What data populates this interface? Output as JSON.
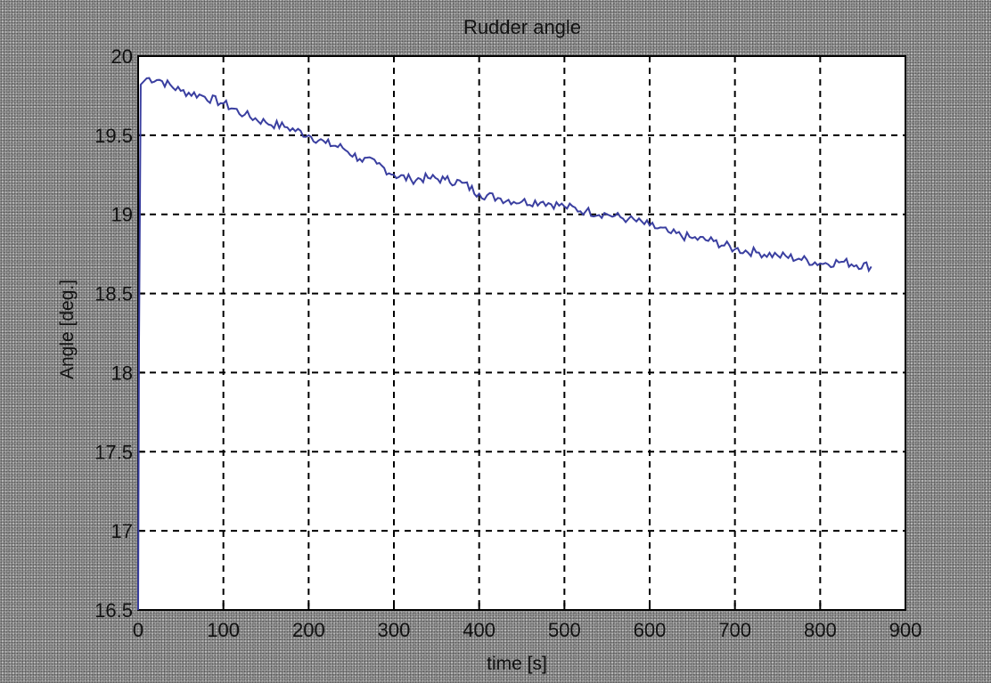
{
  "chart_data": {
    "type": "line",
    "title": "Rudder angle",
    "xlabel": "time [s]",
    "ylabel": "Angle [deg.]",
    "xlim": [
      0,
      900
    ],
    "ylim": [
      16.5,
      20
    ],
    "x_ticks": [
      "0",
      "100",
      "200",
      "300",
      "400",
      "500",
      "600",
      "700",
      "800",
      "900"
    ],
    "y_ticks": [
      "16.5",
      "17",
      "17.5",
      "18",
      "18.5",
      "19",
      "19.5",
      "20"
    ],
    "grid": true,
    "line_color": "#3a3fa0",
    "series": [
      {
        "x": [
          0,
          1,
          3,
          10,
          25,
          50,
          75,
          100,
          125,
          150,
          175,
          200,
          220,
          240,
          260,
          280,
          300,
          320,
          340,
          360,
          380,
          400,
          425,
          450,
          475,
          500,
          525,
          550,
          575,
          600,
          625,
          650,
          675,
          700,
          725,
          750,
          775,
          800,
          825,
          860
        ],
        "y": [
          16.5,
          18.2,
          19.82,
          19.86,
          19.85,
          19.78,
          19.75,
          19.7,
          19.63,
          19.58,
          19.55,
          19.5,
          19.45,
          19.42,
          19.35,
          19.32,
          19.25,
          19.22,
          19.23,
          19.22,
          19.2,
          19.13,
          19.1,
          19.08,
          19.08,
          19.05,
          19.02,
          19.0,
          18.97,
          18.93,
          18.88,
          18.85,
          18.83,
          18.78,
          18.76,
          18.74,
          18.72,
          18.69,
          18.7,
          18.67
        ]
      }
    ]
  }
}
